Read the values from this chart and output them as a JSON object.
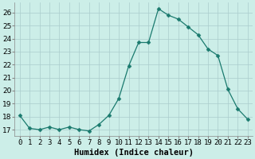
{
  "x": [
    0,
    1,
    2,
    3,
    4,
    5,
    6,
    7,
    8,
    9,
    10,
    11,
    12,
    13,
    14,
    15,
    16,
    17,
    18,
    19,
    20,
    21,
    22,
    23
  ],
  "y": [
    18.1,
    17.1,
    17.0,
    17.2,
    17.0,
    17.2,
    17.0,
    16.9,
    17.4,
    18.1,
    19.4,
    21.9,
    23.7,
    23.7,
    26.3,
    25.8,
    25.5,
    24.9,
    24.3,
    23.2,
    22.7,
    20.1,
    18.6,
    17.8
  ],
  "line_color": "#1a7a6e",
  "marker": "D",
  "marker_size": 2.5,
  "background_color": "#cceee8",
  "grid_color": "#aacccc",
  "xlabel": "Humidex (Indice chaleur)",
  "xlim": [
    -0.5,
    23.5
  ],
  "ylim": [
    16.5,
    26.8
  ],
  "yticks": [
    17,
    18,
    19,
    20,
    21,
    22,
    23,
    24,
    25,
    26
  ],
  "xticks": [
    0,
    1,
    2,
    3,
    4,
    5,
    6,
    7,
    8,
    9,
    10,
    11,
    12,
    13,
    14,
    15,
    16,
    17,
    18,
    19,
    20,
    21,
    22,
    23
  ],
  "tick_fontsize": 6.5,
  "xlabel_fontsize": 7.5
}
